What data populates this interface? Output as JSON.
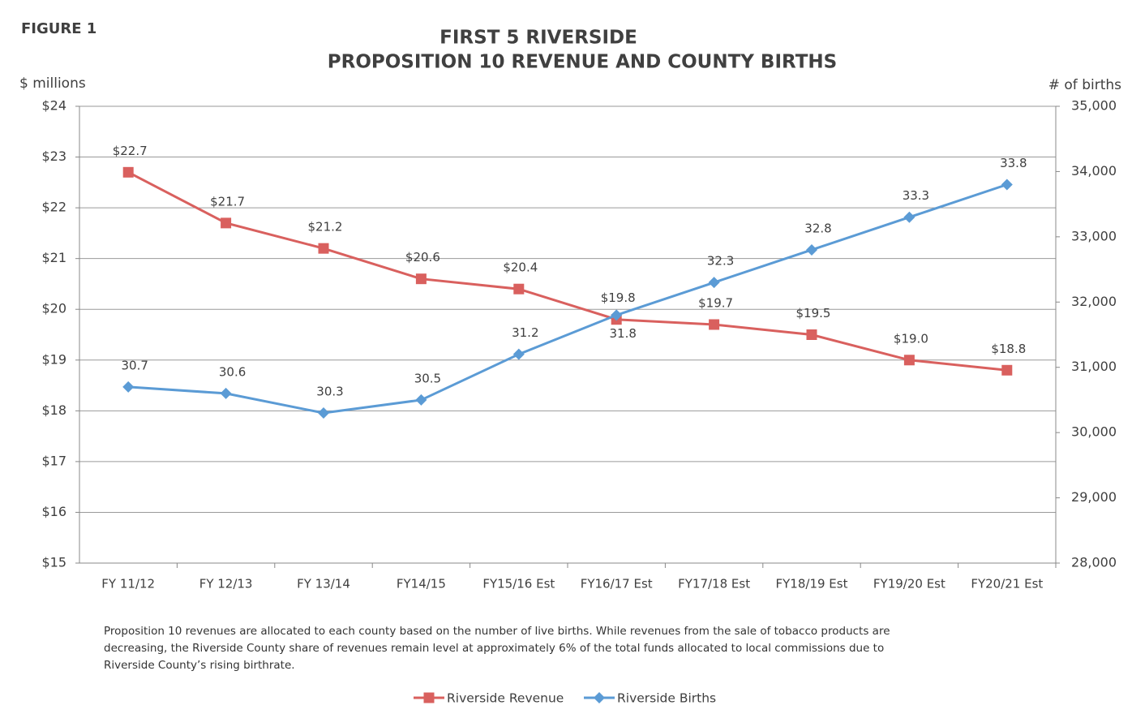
{
  "chart_data": {
    "type": "line",
    "figure_label": "FIGURE 1",
    "title": "FIRST 5 RIVERSIDE",
    "subtitle": "PROPOSITION 10 REVENUE AND COUNTY BIRTHS",
    "y_label": "$ millions",
    "y2_label": "# of births",
    "note": "Proposition 10 revenues are allocated to each county based on the number of live births.  While revenues from the sale of tobacco products are decreasing, the Riverside County share of revenues remain level at approximately 6% of the total funds allocated to local commissions due to Riverside County’s rising birthrate.",
    "categories": [
      "FY 11/12",
      "FY 12/13",
      "FY 13/14",
      "FY14/15",
      "FY15/16 Est",
      "FY16/17 Est",
      "FY17/18 Est",
      "FY18/19 Est",
      "FY19/20 Est",
      "FY20/21 Est"
    ],
    "series": [
      {
        "name": "Riverside Revenue",
        "color": "#d9605e",
        "marker": "square",
        "values": [
          22.7,
          21.7,
          21.2,
          20.6,
          20.4,
          19.8,
          19.7,
          19.5,
          19.0,
          18.8
        ],
        "value_labels": [
          "$22.7",
          "$21.7",
          "$21.2",
          "$20.6",
          "$20.4",
          "$19.8",
          "$19.7",
          "$19.5",
          "$19.0",
          "$18.8"
        ]
      },
      {
        "name": "Riverside Births",
        "color": "#5b9bd5",
        "marker": "diamond",
        "axis": "y2",
        "values": [
          30700,
          30600,
          30300,
          30500,
          31200,
          31800,
          32300,
          32800,
          33300,
          33800
        ],
        "value_labels": [
          "30.7",
          "30.6",
          "30.3",
          "30.5",
          "31.2",
          "31.8",
          "32.3",
          "32.8",
          "33.3",
          "33.8"
        ]
      }
    ],
    "ylim": [
      15,
      24
    ],
    "yticks": [
      {
        "value": 15,
        "label": "$15"
      },
      {
        "value": 16,
        "label": "$16"
      },
      {
        "value": 17,
        "label": "$17"
      },
      {
        "value": 18,
        "label": "$18"
      },
      {
        "value": 19,
        "label": "$19"
      },
      {
        "value": 20,
        "label": "$20"
      },
      {
        "value": 21,
        "label": "$21"
      },
      {
        "value": 22,
        "label": "$22"
      },
      {
        "value": 23,
        "label": "$23"
      },
      {
        "value": 24,
        "label": "$24"
      }
    ],
    "y2lim": [
      28000,
      35000
    ],
    "y2ticks": [
      {
        "value": 28000,
        "label": "28,000"
      },
      {
        "value": 29000,
        "label": "29,000"
      },
      {
        "value": 30000,
        "label": "30,000"
      },
      {
        "value": 31000,
        "label": "31,000"
      },
      {
        "value": 32000,
        "label": "32,000"
      },
      {
        "value": 33000,
        "label": "33,000"
      },
      {
        "value": 34000,
        "label": "34,000"
      },
      {
        "value": 35000,
        "label": "35,000"
      }
    ],
    "grid": true,
    "legend": "bottom"
  }
}
